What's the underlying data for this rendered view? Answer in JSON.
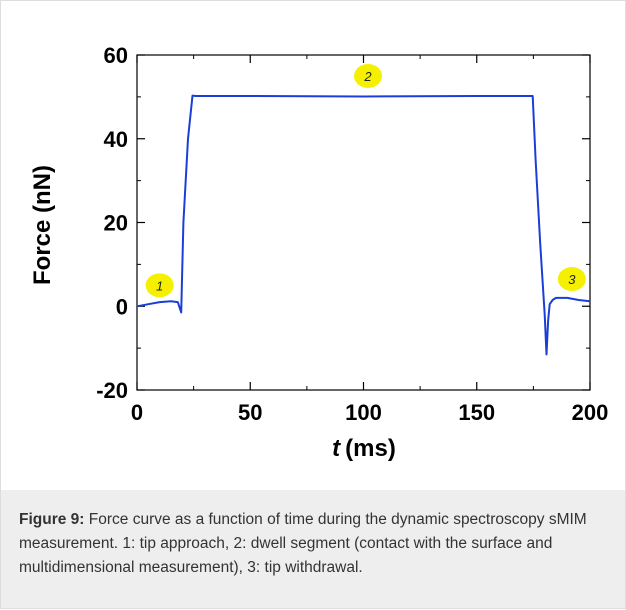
{
  "figure": {
    "caption_label": "Figure 9:",
    "caption_text": "Force curve as a function of time during the dynamic spectroscopy sMIM measurement. 1: tip approach, 2: dwell segment (contact with the surface and multidimensional measurement), 3: tip withdrawal."
  },
  "chart_data": {
    "type": "line",
    "title": "",
    "xlabel_italic": "t",
    "xlabel_unit": "(ms)",
    "ylabel": "Force (nN)",
    "xlim": [
      0,
      200
    ],
    "ylim": [
      -20,
      60
    ],
    "x_ticks": [
      0,
      50,
      100,
      150,
      200
    ],
    "y_ticks": [
      60,
      40,
      20,
      0,
      -20
    ],
    "x_tick_labels": [
      "0",
      "50",
      "100",
      "150",
      "200"
    ],
    "y_tick_labels": [
      "60",
      "40",
      "20",
      "0",
      "-20"
    ],
    "grid": false,
    "series": [
      {
        "color": "#1a3fd6",
        "x": [
          0,
          5,
          10,
          15,
          18,
          19.5,
          20.5,
          22.5,
          24.5,
          26,
          50,
          100,
          150,
          174.7,
          176,
          178,
          180,
          180.8,
          181.5,
          182.2,
          183.5,
          185,
          190,
          195,
          200
        ],
        "y": [
          0,
          0.5,
          1.0,
          1.2,
          1.0,
          -1.5,
          20.0,
          40.0,
          50.3,
          50.2,
          50.2,
          50.1,
          50.2,
          50.2,
          35.0,
          15.0,
          -2.0,
          -11.5,
          -3.5,
          0.5,
          1.5,
          2.0,
          2.0,
          1.5,
          1.2
        ]
      }
    ],
    "markers": [
      {
        "label": "1",
        "x": 10,
        "y": 5
      },
      {
        "label": "2",
        "x": 102,
        "y": 55
      },
      {
        "label": "3",
        "x": 192,
        "y": 6.5
      }
    ],
    "marker_color": "#f5ef00"
  }
}
